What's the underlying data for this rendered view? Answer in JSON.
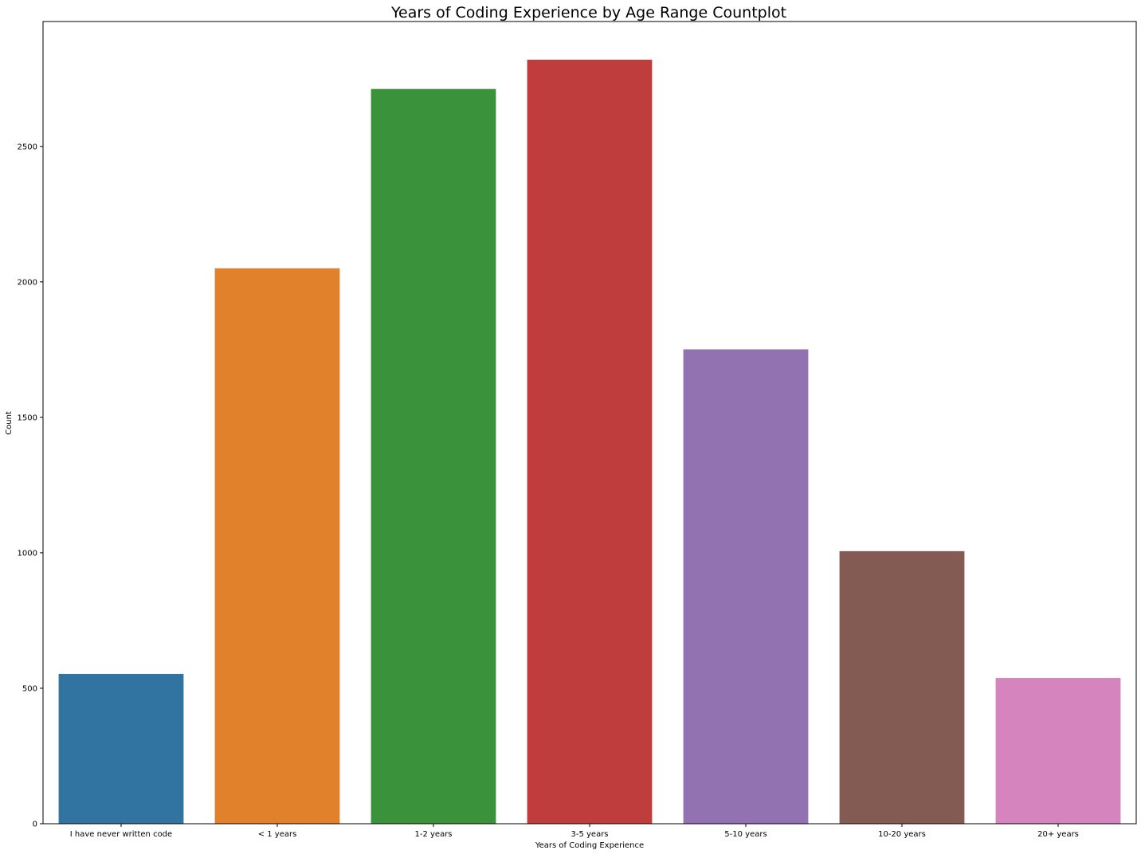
{
  "chart_data": {
    "type": "bar",
    "title": "Years of Coding Experience by Age Range Countplot",
    "xlabel": "Years of Coding Experience",
    "ylabel": "Count",
    "categories": [
      "I have never written code",
      "< 1 years",
      "1-2 years",
      "3-5 years",
      "5-10 years",
      "10-20 years",
      "20+ years"
    ],
    "values": [
      553,
      2050,
      2712,
      2820,
      1751,
      1006,
      538
    ],
    "colors": [
      "#3274a1",
      "#e1812c",
      "#3a923a",
      "#c03d3e",
      "#9372b2",
      "#845b53",
      "#d684bd"
    ],
    "ylim": [
      0,
      2961
    ],
    "yticks": [
      0,
      500,
      1000,
      1500,
      2000,
      2500
    ],
    "grid": false,
    "legend": "none"
  }
}
